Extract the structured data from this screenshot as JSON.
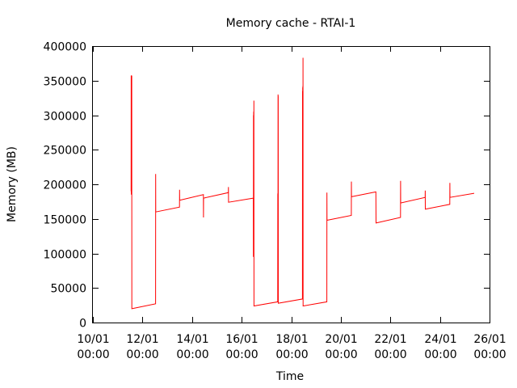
{
  "chart_data": {
    "type": "line",
    "title": "Memory cache - RTAI-1",
    "xlabel": "Time",
    "ylabel": "Memory (MB)",
    "ylim": [
      0,
      400000
    ],
    "yticks": [
      "0",
      "50000",
      "100000",
      "150000",
      "200000",
      "250000",
      "300000",
      "350000",
      "400000"
    ],
    "xlim": [
      "10/01 00:00",
      "26/01 00:00"
    ],
    "xticks": [
      {
        "date": "10/01",
        "time": "00:00"
      },
      {
        "date": "12/01",
        "time": "00:00"
      },
      {
        "date": "14/01",
        "time": "00:00"
      },
      {
        "date": "16/01",
        "time": "00:00"
      },
      {
        "date": "18/01",
        "time": "00:00"
      },
      {
        "date": "20/01",
        "time": "00:00"
      },
      {
        "date": "22/01",
        "time": "00:00"
      },
      {
        "date": "24/01",
        "time": "00:00"
      },
      {
        "date": "26/01",
        "time": "00:00"
      }
    ],
    "grid": false,
    "series_color": "#ff0000",
    "series": [
      {
        "points": [
          [
            "11/01 13:00",
            190000
          ],
          [
            "11/01 13:05",
            357000
          ],
          [
            "11/01 13:10",
            185000
          ],
          [
            "11/01 13:15",
            357000
          ],
          [
            "11/01 13:25",
            357000
          ],
          [
            "11/01 13:30",
            200000
          ],
          [
            "11/01 13:35",
            357000
          ],
          [
            "11/01 13:40",
            20000
          ],
          [
            "12/01 12:40",
            27000
          ],
          [
            "12/01 12:45",
            215000
          ],
          [
            "12/01 12:50",
            160000
          ],
          [
            "13/01 11:50",
            167000
          ],
          [
            "13/01 11:55",
            192000
          ],
          [
            "13/01 12:00",
            177000
          ],
          [
            "14/01 11:00",
            185000
          ],
          [
            "14/01 11:05",
            152000
          ],
          [
            "14/01 11:10",
            180000
          ],
          [
            "15/01 11:10",
            188000
          ],
          [
            "15/01 11:15",
            196000
          ],
          [
            "15/01 11:20",
            174000
          ],
          [
            "16/01 11:20",
            180000
          ],
          [
            "16/01 11:25",
            95000
          ],
          [
            "16/01 11:30",
            300000
          ],
          [
            "16/01 11:35",
            180000
          ],
          [
            "16/01 11:40",
            305000
          ],
          [
            "16/01 11:45",
            200000
          ],
          [
            "16/01 11:50",
            321000
          ],
          [
            "16/01 11:55",
            24000
          ],
          [
            "17/01 10:55",
            30000
          ],
          [
            "17/01 11:00",
            185000
          ],
          [
            "17/01 11:05",
            187000
          ],
          [
            "17/01 11:10",
            30000
          ],
          [
            "17/01 11:15",
            330000
          ],
          [
            "17/01 11:20",
            150000
          ],
          [
            "17/01 11:25",
            328000
          ],
          [
            "17/01 11:30",
            28000
          ],
          [
            "18/01 10:50",
            34000
          ],
          [
            "18/01 10:55",
            335000
          ],
          [
            "18/01 11:00",
            55000
          ],
          [
            "18/01 11:05",
            340000
          ],
          [
            "18/01 11:10",
            200000
          ],
          [
            "18/01 11:15",
            342000
          ],
          [
            "18/01 11:20",
            100000
          ],
          [
            "18/01 11:25",
            383000
          ],
          [
            "18/01 11:30",
            24000
          ],
          [
            "19/01 10:30",
            30000
          ],
          [
            "19/01 10:35",
            188000
          ],
          [
            "19/01 10:40",
            148000
          ],
          [
            "20/01 10:10",
            155000
          ],
          [
            "20/01 10:15",
            204000
          ],
          [
            "20/01 10:20",
            182000
          ],
          [
            "21/01 10:00",
            189000
          ],
          [
            "21/01 10:05",
            144000
          ],
          [
            "22/01 09:50",
            152000
          ],
          [
            "22/01 09:55",
            205000
          ],
          [
            "22/01 10:00",
            173000
          ],
          [
            "23/01 09:40",
            181000
          ],
          [
            "23/01 09:45",
            191000
          ],
          [
            "23/01 09:50",
            164000
          ],
          [
            "24/01 09:30",
            171000
          ],
          [
            "24/01 09:35",
            202000
          ],
          [
            "24/01 09:40",
            181000
          ],
          [
            "25/01 09:10",
            187000
          ]
        ]
      }
    ]
  }
}
